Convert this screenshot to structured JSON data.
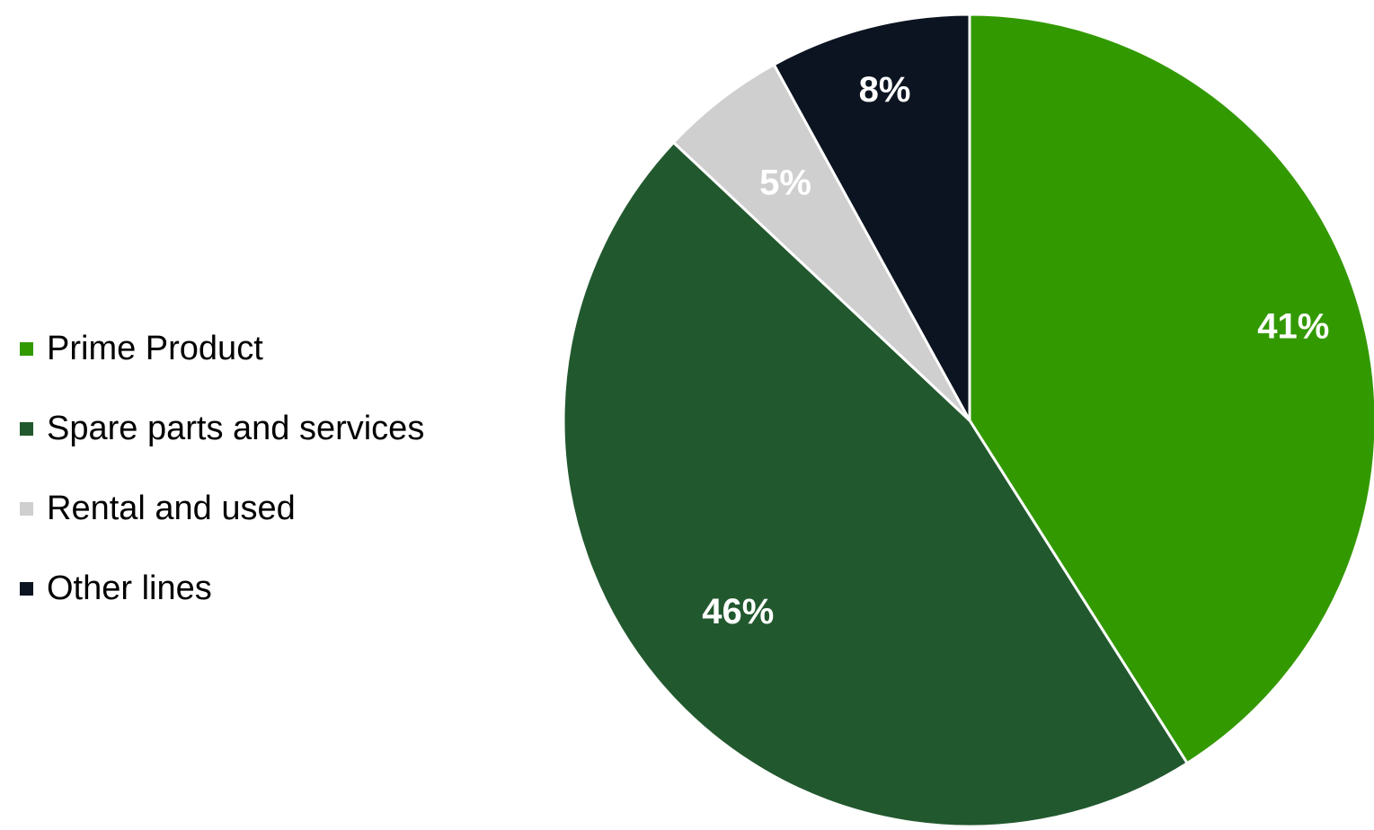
{
  "chart_data": {
    "type": "pie",
    "categories": [
      "Prime Product",
      "Spare parts and services",
      "Rental and used",
      "Other lines"
    ],
    "values": [
      41,
      46,
      5,
      8
    ],
    "labels": [
      "41%",
      "46%",
      "5%",
      "8%"
    ],
    "colors": [
      "#339900",
      "#22582e",
      "#d0cfd0",
      "#0b1420"
    ],
    "label_colors": [
      "#ffffff",
      "#ffffff",
      "#ffffff",
      "#ffffff"
    ],
    "start_angle": "12 o'clock",
    "direction": "clockwise",
    "legend_position": "left"
  },
  "legend": {
    "items": [
      {
        "label": "Prime Product",
        "color": "#339900"
      },
      {
        "label": "Spare parts and services",
        "color": "#22582e"
      },
      {
        "label": "Rental and used",
        "color": "#d0cfd0"
      },
      {
        "label": "Other lines",
        "color": "#0b1420"
      }
    ]
  }
}
